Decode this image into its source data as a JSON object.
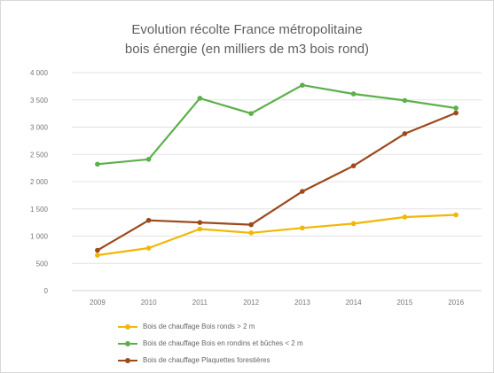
{
  "chart_data": {
    "type": "line",
    "title": "Evolution récolte France métropolitaine",
    "subtitle": "bois énergie (en milliers de m3 bois rond)",
    "categories": [
      "2009",
      "2010",
      "2011",
      "2012",
      "2013",
      "2014",
      "2015",
      "2016"
    ],
    "ylim": [
      0,
      4000
    ],
    "yticks": [
      0,
      500,
      1000,
      1500,
      2000,
      2500,
      3000,
      3500,
      4000
    ],
    "ytick_labels": [
      "0",
      "500",
      "1 000",
      "1 500",
      "2 000",
      "2 500",
      "3 000",
      "3 500",
      "4 000"
    ],
    "grid": true,
    "legend_position": "bottom",
    "series": [
      {
        "name": "Bois de chauffage Bois ronds > 2 m",
        "color": "#f2b705",
        "values": [
          650,
          780,
          1130,
          1060,
          1150,
          1230,
          1350,
          1390
        ]
      },
      {
        "name": "Bois de chauffage Bois en rondins et bûches < 2 m",
        "color": "#5cb04a",
        "values": [
          2320,
          2410,
          3530,
          3250,
          3770,
          3610,
          3490,
          3350
        ]
      },
      {
        "name": "Bois de chauffage Plaquettes forestières",
        "color": "#9c4a1c",
        "values": [
          740,
          1290,
          1250,
          1210,
          1820,
          2290,
          2880,
          3260
        ]
      }
    ]
  }
}
